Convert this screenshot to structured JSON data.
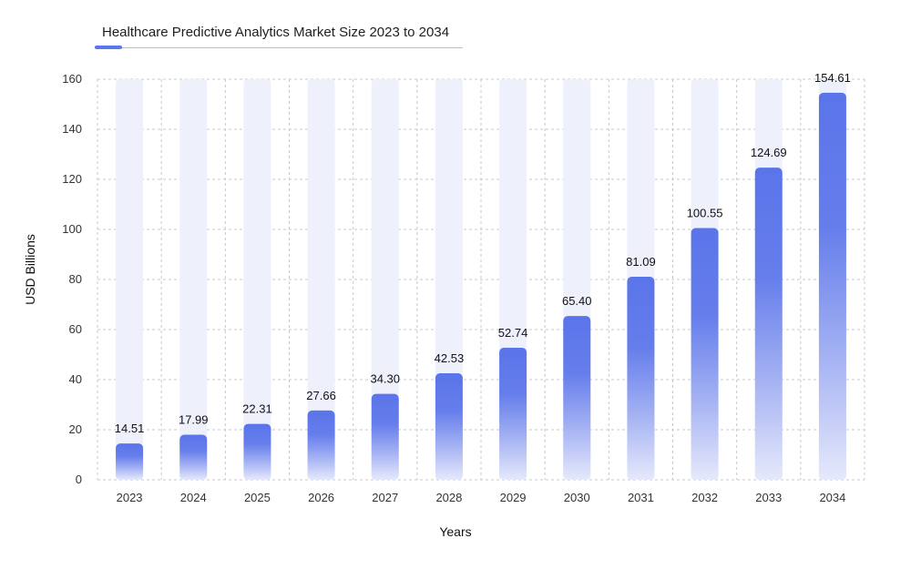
{
  "chart_data": {
    "type": "bar",
    "title": "Healthcare Predictive Analytics Market Size 2023 to 2034",
    "xlabel": "Years",
    "ylabel": "USD Billions",
    "categories": [
      "2023",
      "2024",
      "2025",
      "2026",
      "2027",
      "2028",
      "2029",
      "2030",
      "2031",
      "2032",
      "2033",
      "2034"
    ],
    "values": [
      14.51,
      17.99,
      22.31,
      27.66,
      34.3,
      42.53,
      52.74,
      65.4,
      81.09,
      100.55,
      124.69,
      154.61
    ],
    "value_labels": [
      "14.51",
      "17.99",
      "22.31",
      "27.66",
      "34.30",
      "42.53",
      "52.74",
      "65.40",
      "81.09",
      "100.55",
      "124.69",
      "154.61"
    ],
    "ylim": [
      0,
      160
    ],
    "yticks": [
      0,
      20,
      40,
      60,
      80,
      100,
      120,
      140,
      160
    ],
    "grid": true,
    "colors": {
      "bar_top": "#5a74ea",
      "bar_bottom": "#e6e9fb",
      "bar_track": "#eef0fc",
      "grid": "#c8c8c8",
      "accent": "#5a78ee"
    }
  }
}
